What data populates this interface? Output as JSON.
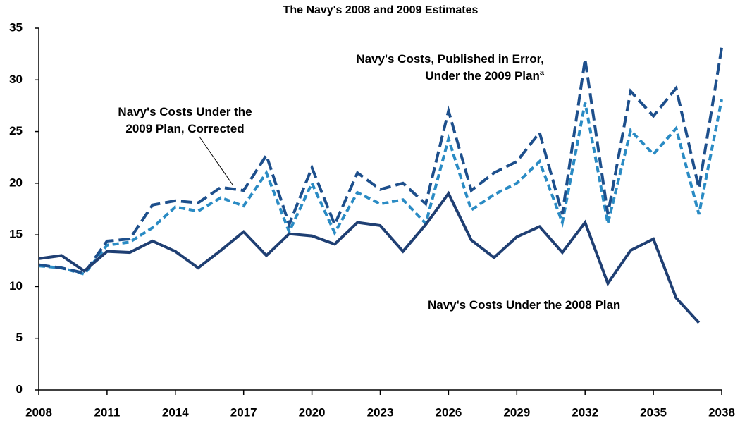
{
  "chart_data": {
    "type": "line",
    "title": "The Navy's 2008 and 2009 Estimates",
    "x": [
      2008,
      2009,
      2010,
      2011,
      2012,
      2013,
      2014,
      2015,
      2016,
      2017,
      2018,
      2019,
      2020,
      2021,
      2022,
      2023,
      2024,
      2025,
      2026,
      2027,
      2028,
      2029,
      2030,
      2031,
      2032,
      2033,
      2034,
      2035,
      2036,
      2037,
      2038
    ],
    "xlim": [
      2008,
      2038
    ],
    "xticks": [
      2008,
      2011,
      2014,
      2017,
      2020,
      2023,
      2026,
      2029,
      2032,
      2035,
      2038
    ],
    "ylim": [
      0,
      35
    ],
    "yticks": [
      0,
      5,
      10,
      15,
      20,
      25,
      30,
      35
    ],
    "series": [
      {
        "name": "Navy's Costs Under the 2008 Plan",
        "color": "#1f3f73",
        "dash": "solid",
        "values": [
          12.7,
          13.0,
          11.5,
          13.4,
          13.3,
          14.4,
          13.4,
          11.8,
          13.5,
          15.3,
          13.0,
          15.1,
          14.9,
          14.1,
          16.2,
          15.9,
          13.4,
          16.0,
          19.0,
          14.5,
          12.8,
          14.8,
          15.8,
          13.3,
          16.2,
          10.3,
          13.5,
          14.6,
          8.9,
          6.5,
          null
        ]
      },
      {
        "name": "Navy's Costs, Published in Error,\nUnder the 2009 Plan",
        "footnote": "a",
        "color": "#1d4f8c",
        "dash": "dashed",
        "values": [
          12.1,
          11.8,
          11.3,
          14.4,
          14.6,
          17.9,
          18.3,
          18.1,
          19.6,
          19.3,
          22.7,
          16.0,
          21.5,
          16.0,
          21.0,
          19.4,
          20.0,
          18.0,
          27.0,
          19.3,
          21.0,
          22.1,
          24.9,
          17.0,
          32.0,
          17.0,
          28.9,
          26.5,
          29.2,
          19.5,
          33.1
        ]
      },
      {
        "name": "Navy's Costs Under the\n2009 Plan, Corrected",
        "color": "#2a8bc4",
        "dash": "dotted",
        "values": [
          12.0,
          11.8,
          11.2,
          14.0,
          14.3,
          15.7,
          17.7,
          17.3,
          18.6,
          17.8,
          21.0,
          15.3,
          20.0,
          15.2,
          19.1,
          18.0,
          18.4,
          16.1,
          24.3,
          17.4,
          18.9,
          20.0,
          22.1,
          16.2,
          27.8,
          16.1,
          25.1,
          22.8,
          25.3,
          17.0,
          28.1
        ]
      }
    ]
  }
}
